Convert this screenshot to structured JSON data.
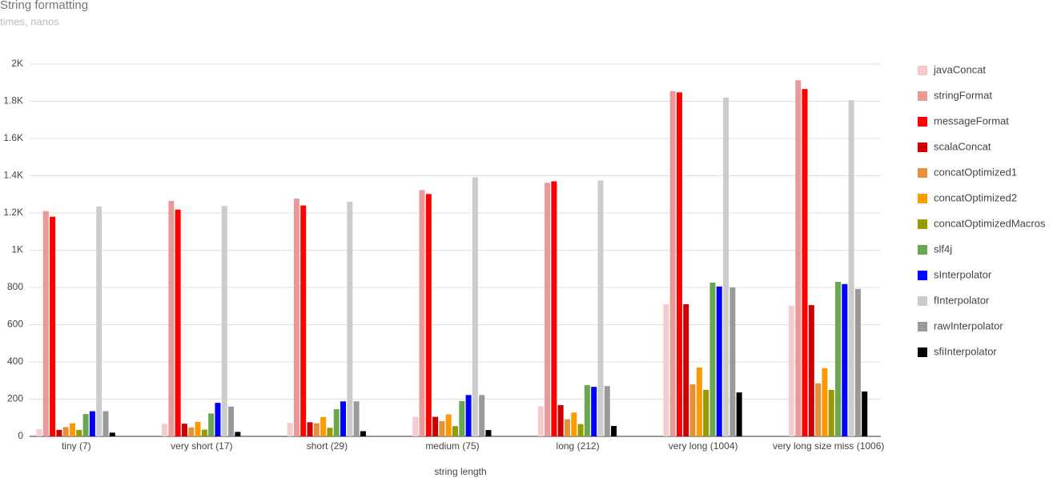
{
  "chart_data": {
    "type": "bar",
    "title": "String formatting",
    "subtitle": "times, nanos",
    "x_label": "string length",
    "categories": [
      "tiny (7)",
      "very short (17)",
      "short (29)",
      "medium (75)",
      "long (212)",
      "very long (1004)",
      "very long size miss (1006)"
    ],
    "series": [
      {
        "name": "javaConcat",
        "color": "#f4cccc",
        "values": [
          38,
          68,
          72,
          105,
          162,
          710,
          702
        ]
      },
      {
        "name": "stringFormat",
        "color": "#ea9999",
        "values": [
          1210,
          1265,
          1277,
          1323,
          1362,
          1855,
          1913
        ]
      },
      {
        "name": "messageFormat",
        "color": "#ff0000",
        "values": [
          1180,
          1218,
          1240,
          1302,
          1370,
          1848,
          1866
        ]
      },
      {
        "name": "scalaConcat",
        "color": "#cc0000",
        "values": [
          35,
          68,
          76,
          105,
          168,
          710,
          705
        ]
      },
      {
        "name": "concatOptimized1",
        "color": "#e69138",
        "values": [
          50,
          48,
          70,
          82,
          92,
          280,
          285
        ]
      },
      {
        "name": "concatOptimized2",
        "color": "#ff9900",
        "values": [
          70,
          78,
          104,
          118,
          128,
          370,
          366
        ]
      },
      {
        "name": "concatOptimizedMacros",
        "color": "#999900",
        "values": [
          35,
          36,
          46,
          55,
          66,
          250,
          250
        ]
      },
      {
        "name": "slf4j",
        "color": "#6aa84f",
        "values": [
          120,
          123,
          146,
          190,
          275,
          826,
          830
        ]
      },
      {
        "name": "sInterpolator",
        "color": "#0000ff",
        "values": [
          135,
          180,
          188,
          222,
          266,
          805,
          818
        ]
      },
      {
        "name": "fInterpolator",
        "color": "#cccccc",
        "values": [
          1235,
          1238,
          1260,
          1392,
          1375,
          1820,
          1806
        ]
      },
      {
        "name": "rawInterpolator",
        "color": "#999999",
        "values": [
          135,
          160,
          188,
          222,
          270,
          800,
          792
        ]
      },
      {
        "name": "sfiInterpolator",
        "color": "#000000",
        "values": [
          20,
          24,
          28,
          34,
          56,
          236,
          241
        ]
      }
    ],
    "ylim": [
      0,
      2000
    ],
    "yticks": [
      0,
      200,
      400,
      600,
      800,
      {
        "value": 1000,
        "label": "1K"
      },
      {
        "value": 1200,
        "label": "1.2K"
      },
      {
        "value": 1400,
        "label": "1.4K"
      },
      {
        "value": 1600,
        "label": "1.6K"
      },
      {
        "value": 1800,
        "label": "1.8K"
      },
      {
        "value": 2000,
        "label": "2K"
      }
    ],
    "grid": true,
    "legend": "right"
  }
}
